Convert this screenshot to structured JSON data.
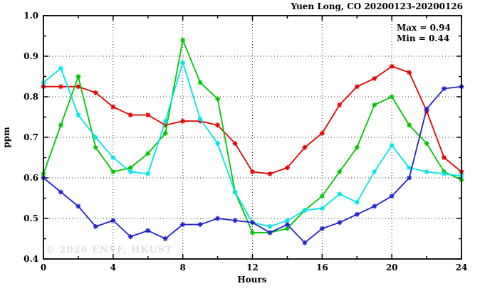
{
  "chart_data": {
    "type": "line",
    "title": "Yuen Long, CO 20200123-20200126",
    "annotations": {
      "max": "Max = 0.94",
      "min": "Min = 0.44"
    },
    "xlabel": "Hours",
    "ylabel": "ppm",
    "xlim": [
      0,
      24
    ],
    "ylim": [
      0.4,
      1.0
    ],
    "xticks": [
      0,
      4,
      8,
      12,
      16,
      20,
      24
    ],
    "xtick_labels": [
      "0",
      "4",
      "8",
      "12",
      "16",
      "20",
      "24"
    ],
    "x_minor_interval": 2,
    "yticks": [
      0.4,
      0.5,
      0.6,
      0.7,
      0.8,
      0.9,
      1.0
    ],
    "ytick_labels": [
      "0.4",
      "0.5",
      "0.6",
      "0.7",
      "0.8",
      "0.9",
      "1.0"
    ],
    "y_minor_interval": 0.05,
    "grid": "dotted-at-major-ticks",
    "legend": "none",
    "x": [
      0,
      1,
      2,
      3,
      4,
      5,
      6,
      7,
      8,
      9,
      10,
      11,
      12,
      13,
      14,
      15,
      16,
      17,
      18,
      19,
      20,
      21,
      22,
      23,
      24
    ],
    "series": [
      {
        "name": "red",
        "color": "#e30000",
        "values": [
          0.825,
          0.825,
          0.825,
          0.81,
          0.775,
          0.755,
          0.755,
          0.73,
          0.74,
          0.74,
          0.73,
          0.685,
          0.615,
          0.61,
          0.625,
          0.675,
          0.71,
          0.78,
          0.825,
          0.845,
          0.875,
          0.86,
          0.765,
          0.65,
          0.615
        ]
      },
      {
        "name": "green",
        "color": "#00c500",
        "values": [
          0.61,
          0.73,
          0.85,
          0.675,
          0.615,
          0.625,
          0.66,
          0.71,
          0.94,
          0.835,
          0.795,
          0.565,
          0.465,
          0.465,
          0.475,
          0.52,
          0.555,
          0.615,
          0.675,
          0.78,
          0.8,
          0.73,
          0.685,
          0.615,
          0.595
        ]
      },
      {
        "name": "cyan",
        "color": "#00e6e6",
        "values": [
          0.835,
          0.87,
          0.755,
          0.7,
          0.65,
          0.615,
          0.61,
          0.74,
          0.885,
          0.745,
          0.685,
          0.565,
          0.49,
          0.48,
          0.495,
          0.52,
          0.525,
          0.56,
          0.54,
          0.615,
          0.68,
          0.625,
          0.615,
          0.61,
          0.605
        ]
      },
      {
        "name": "blue",
        "color": "#2222cc",
        "values": [
          0.6,
          0.565,
          0.53,
          0.48,
          0.495,
          0.455,
          0.47,
          0.45,
          0.485,
          0.485,
          0.5,
          0.495,
          0.49,
          0.465,
          0.485,
          0.44,
          0.475,
          0.49,
          0.51,
          0.53,
          0.555,
          0.6,
          0.77,
          0.82,
          0.825
        ]
      }
    ]
  },
  "watermark": "© 2026 ENVF, HKUST"
}
